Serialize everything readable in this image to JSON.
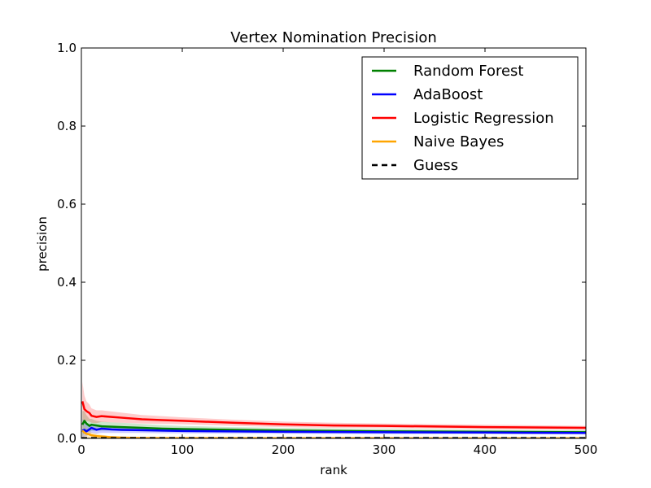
{
  "chart_data": {
    "type": "line",
    "title": "Vertex Nomination Precision",
    "xlabel": "rank",
    "ylabel": "precision",
    "xlim": [
      0,
      500
    ],
    "ylim": [
      0.0,
      1.0
    ],
    "xticks": [
      0,
      100,
      200,
      300,
      400,
      500
    ],
    "xtick_labels": [
      "0",
      "100",
      "200",
      "300",
      "400",
      "500"
    ],
    "yticks": [
      0.0,
      0.2,
      0.4,
      0.6,
      0.8,
      1.0
    ],
    "ytick_labels": [
      "0.0",
      "0.2",
      "0.4",
      "0.6",
      "0.8",
      "1.0"
    ],
    "grid": false,
    "legend_position": "top-right",
    "series": [
      {
        "name": "Random Forest",
        "color": "#008000",
        "style": "solid",
        "x": [
          1,
          3,
          5,
          8,
          10,
          15,
          20,
          30,
          40,
          60,
          80,
          100,
          150,
          200,
          300,
          400,
          500
        ],
        "y": [
          0.035,
          0.045,
          0.038,
          0.032,
          0.035,
          0.033,
          0.031,
          0.03,
          0.029,
          0.027,
          0.025,
          0.024,
          0.022,
          0.02,
          0.018,
          0.017,
          0.016
        ],
        "band_upper": [
          0.07,
          0.07,
          0.06,
          0.05,
          0.05,
          0.045,
          0.043,
          0.041,
          0.04,
          0.037,
          0.034,
          0.032,
          0.029,
          0.027,
          0.024,
          0.022,
          0.021
        ],
        "band_lower": [
          0.005,
          0.015,
          0.018,
          0.017,
          0.019,
          0.02,
          0.02,
          0.02,
          0.019,
          0.018,
          0.017,
          0.017,
          0.016,
          0.014,
          0.013,
          0.012,
          0.012
        ]
      },
      {
        "name": "AdaBoost",
        "color": "#0000ff",
        "style": "solid",
        "x": [
          1,
          3,
          5,
          8,
          10,
          15,
          20,
          30,
          40,
          60,
          80,
          100,
          150,
          200,
          300,
          400,
          500
        ],
        "y": [
          0.02,
          0.022,
          0.018,
          0.023,
          0.027,
          0.022,
          0.025,
          0.023,
          0.022,
          0.021,
          0.02,
          0.019,
          0.018,
          0.017,
          0.016,
          0.015,
          0.014
        ],
        "band_upper": [
          0.05,
          0.045,
          0.035,
          0.036,
          0.038,
          0.033,
          0.034,
          0.031,
          0.03,
          0.028,
          0.027,
          0.026,
          0.024,
          0.022,
          0.021,
          0.019,
          0.018
        ],
        "band_lower": [
          0.0,
          0.005,
          0.006,
          0.01,
          0.014,
          0.012,
          0.014,
          0.014,
          0.014,
          0.014,
          0.013,
          0.013,
          0.012,
          0.012,
          0.011,
          0.011,
          0.01
        ]
      },
      {
        "name": "Logistic Regression",
        "color": "#ff0000",
        "style": "solid",
        "x": [
          1,
          3,
          5,
          8,
          10,
          15,
          20,
          30,
          40,
          60,
          80,
          100,
          150,
          200,
          250,
          300,
          400,
          500
        ],
        "y": [
          0.095,
          0.075,
          0.07,
          0.065,
          0.058,
          0.055,
          0.057,
          0.055,
          0.053,
          0.049,
          0.047,
          0.045,
          0.04,
          0.036,
          0.033,
          0.032,
          0.029,
          0.027
        ],
        "band_upper": [
          0.145,
          0.11,
          0.095,
          0.087,
          0.077,
          0.072,
          0.072,
          0.069,
          0.066,
          0.06,
          0.057,
          0.054,
          0.048,
          0.043,
          0.04,
          0.038,
          0.035,
          0.032
        ],
        "band_lower": [
          0.05,
          0.04,
          0.045,
          0.043,
          0.04,
          0.039,
          0.042,
          0.041,
          0.04,
          0.038,
          0.037,
          0.036,
          0.032,
          0.029,
          0.027,
          0.026,
          0.024,
          0.022
        ]
      },
      {
        "name": "Naive Bayes",
        "color": "#ffa500",
        "style": "solid",
        "x": [
          1,
          3,
          5,
          8,
          10,
          15,
          20,
          30,
          40,
          60,
          100,
          200,
          300,
          400,
          500
        ],
        "y": [
          0.02,
          0.015,
          0.012,
          0.01,
          0.008,
          0.006,
          0.005,
          0.003,
          0.002,
          0.001,
          0.0008,
          0.0005,
          0.0004,
          0.0003,
          0.0002
        ],
        "band_upper": [
          0.05,
          0.035,
          0.026,
          0.02,
          0.016,
          0.012,
          0.009,
          0.006,
          0.004,
          0.003,
          0.002,
          0.0012,
          0.001,
          0.0008,
          0.0006
        ],
        "band_lower": [
          0.0,
          0.0,
          0.0,
          0.0,
          0.0,
          0.0,
          0.001,
          0.0005,
          0.0,
          0.0,
          0.0,
          0.0,
          0.0,
          0.0,
          0.0
        ]
      },
      {
        "name": "Guess",
        "color": "#000000",
        "style": "dashed",
        "x": [
          0,
          500
        ],
        "y": [
          0.0008,
          0.0008
        ]
      }
    ]
  }
}
